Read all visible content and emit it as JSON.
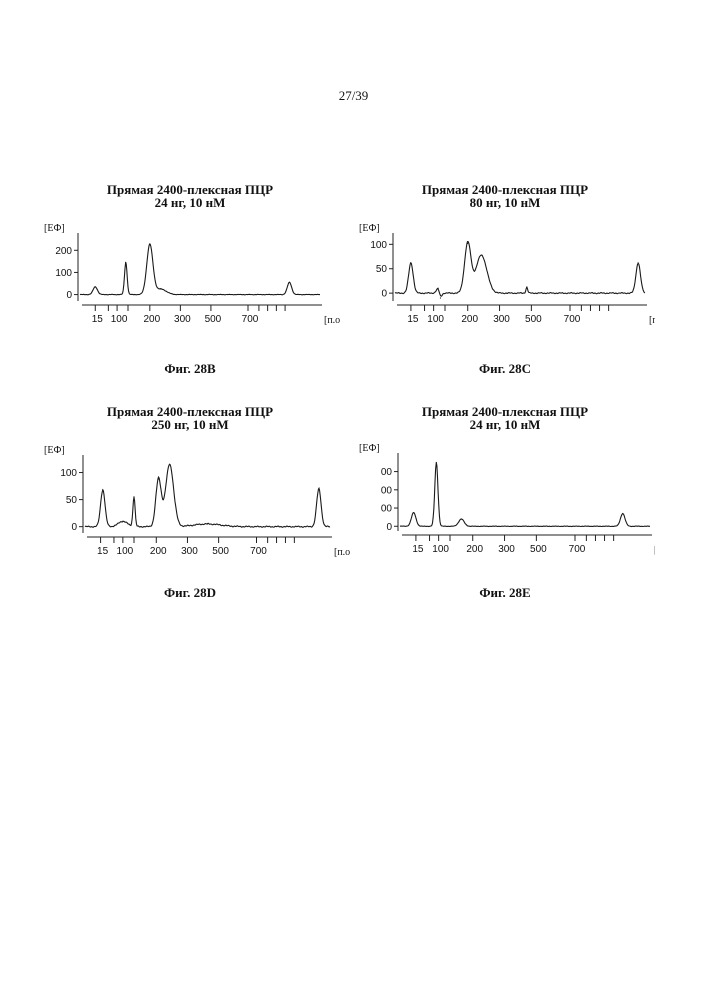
{
  "page_number": "27/39",
  "chart_data": [
    {
      "id": "28B",
      "type": "line",
      "title": "Прямая 2400-плексная ПЦР",
      "subtitle": "24 нг, 10 нМ",
      "ylabel": "[ЕФ]",
      "xlabel": "[п.о.]",
      "caption": "Фиг. 28В",
      "yticks": [
        0,
        100,
        200
      ],
      "ytick_labels": [
        "0",
        "100",
        "200"
      ],
      "ylim": [
        -20,
        260
      ],
      "xlim": [
        0,
        110
      ],
      "xticks": [
        15,
        100,
        200,
        300,
        500,
        700
      ],
      "xtick_labels": [
        "15",
        "100",
        "200",
        "300",
        "500",
        "700"
      ],
      "x_marks": [
        7,
        13,
        17,
        22,
        32,
        46,
        60,
        77,
        82,
        86,
        90,
        94
      ],
      "series": [
        {
          "name": "trace",
          "peaks": [
            [
              7,
              35,
              1.0
            ],
            [
              21,
              145,
              0.6
            ],
            [
              32,
              225,
              1.4
            ],
            [
              37,
              25,
              2.5
            ],
            [
              96,
              55,
              1.0
            ]
          ]
        }
      ]
    },
    {
      "id": "28C",
      "type": "line",
      "title": "Прямая 2400-плексная ПЦР",
      "subtitle": "80 нг, 10 нМ",
      "ylabel": "[ЕФ]",
      "xlabel": "[п.о.]",
      "caption": "Фиг. 28С",
      "yticks": [
        0,
        50,
        100
      ],
      "ytick_labels": [
        "0",
        "50",
        "100"
      ],
      "ylim": [
        -12,
        115
      ],
      "xlim": [
        0,
        110
      ],
      "xticks": [
        15,
        100,
        200,
        300,
        500,
        700
      ],
      "xtick_labels": [
        "15",
        "100",
        "200",
        "300",
        "500",
        "700"
      ],
      "x_marks": [
        7,
        13,
        17,
        22,
        32,
        46,
        60,
        77,
        82,
        86,
        90,
        94
      ],
      "series": [
        {
          "name": "trace",
          "peaks": [
            [
              7,
              62,
              1.0
            ],
            [
              19,
              10,
              0.8
            ],
            [
              20,
              -10,
              0.6
            ],
            [
              32,
              102,
              1.4
            ],
            [
              38,
              78,
              2.4
            ],
            [
              58,
              12,
              0.4
            ],
            [
              107,
              62,
              1.0
            ]
          ]
        }
      ]
    },
    {
      "id": "28D",
      "type": "line",
      "title": "Прямая 2400-плексная ПЦР",
      "subtitle": "250 нг, 10 нМ",
      "ylabel": "[ЕФ]",
      "xlabel": "[п.о.]",
      "caption": "Фиг. 28D",
      "yticks": [
        0,
        50,
        100
      ],
      "ytick_labels": [
        "0",
        "50",
        "100"
      ],
      "ylim": [
        -8,
        125
      ],
      "xlim": [
        0,
        110
      ],
      "xticks": [
        15,
        100,
        200,
        300,
        500,
        700
      ],
      "xtick_labels": [
        "15",
        "100",
        "200",
        "300",
        "500",
        "700"
      ],
      "x_marks": [
        7,
        13,
        17,
        22,
        32,
        46,
        60,
        77,
        82,
        86,
        90,
        94
      ],
      "series": [
        {
          "name": "trace",
          "peaks": [
            [
              8,
              68,
              1.0
            ],
            [
              17,
              10,
              2.0
            ],
            [
              22,
              55,
              0.5
            ],
            [
              33,
              88,
              1.2
            ],
            [
              38,
              115,
              1.8
            ],
            [
              55,
              5,
              6.0
            ],
            [
              105,
              70,
              1.0
            ]
          ]
        }
      ]
    },
    {
      "id": "28E",
      "type": "line",
      "title": "Прямая 2400-плексная ПЦР",
      "subtitle": "24 нг, 10 нМ",
      "ylabel": "[ЕФ]",
      "xlabel": "[п.о.]",
      "caption": "Фиг. 28Е",
      "yticks": [
        0,
        100,
        200,
        300
      ],
      "ytick_labels": [
        "0",
        "00",
        "00",
        "00"
      ],
      "ylim": [
        -15,
        380
      ],
      "xlim": [
        0,
        110
      ],
      "xticks": [
        15,
        100,
        200,
        300,
        500,
        700
      ],
      "xtick_labels": [
        "15",
        "100",
        "200",
        "300",
        "500",
        "700"
      ],
      "x_marks": [
        7,
        13,
        17,
        22,
        32,
        46,
        60,
        77,
        82,
        86,
        90,
        94
      ],
      "series": [
        {
          "name": "trace",
          "peaks": [
            [
              6,
              75,
              1.0
            ],
            [
              16,
              350,
              0.7
            ],
            [
              27,
              40,
              1.2
            ],
            [
              98,
              70,
              1.0
            ]
          ]
        }
      ]
    }
  ]
}
